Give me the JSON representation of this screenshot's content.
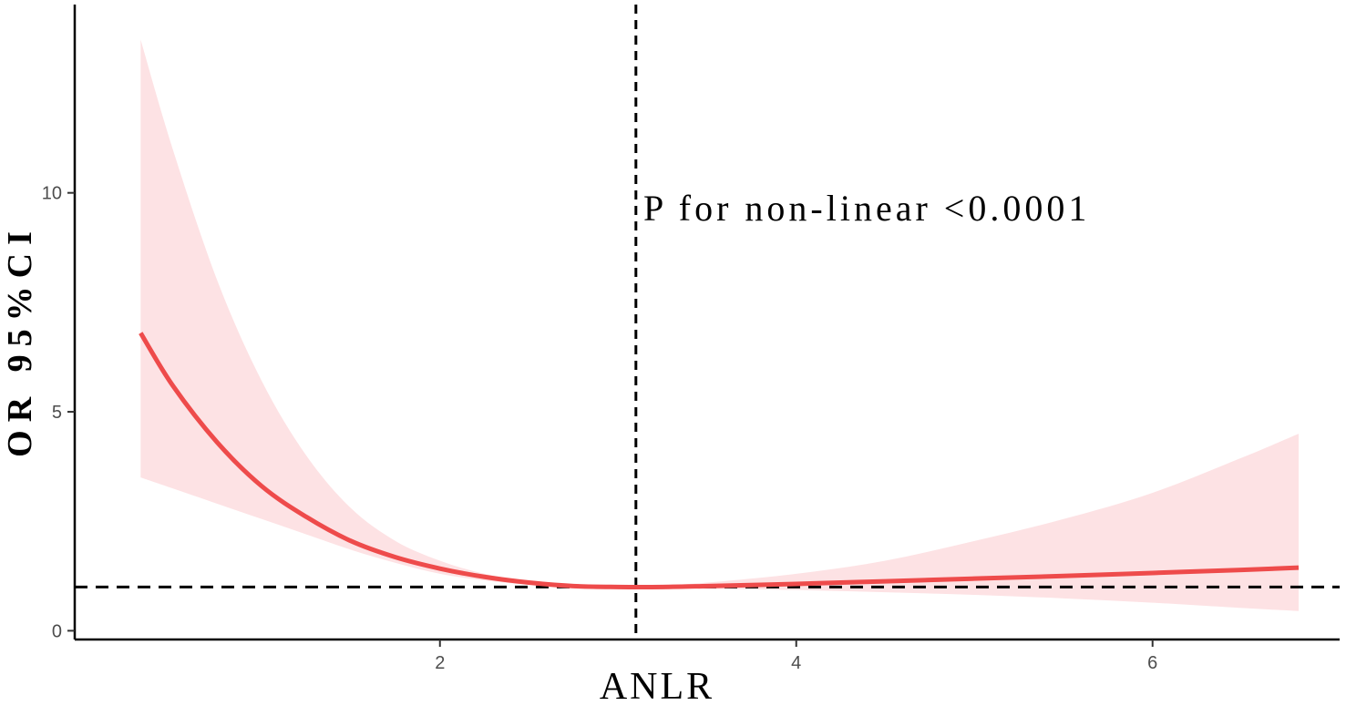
{
  "chart_data": {
    "type": "line",
    "xlabel": "ANLR",
    "ylabel": "OR 95%CI",
    "annotation": "P for non-linear <0.0001",
    "xlim": [
      -0.05,
      7.05
    ],
    "ylim": [
      -0.2,
      14.3
    ],
    "x_ticks": [
      2,
      4,
      6
    ],
    "y_ticks": [
      0,
      5,
      10
    ],
    "reference_hline_y": 1,
    "reference_vline_x": 3.1,
    "colors": {
      "line": "#ee4b4b",
      "band": "#fde2e4",
      "reference": "#000000"
    },
    "series": [
      {
        "x": [
          0.32,
          0.5,
          0.75,
          1.0,
          1.25,
          1.5,
          1.75,
          2.0,
          2.25,
          2.5,
          2.75,
          3.0,
          3.25,
          3.5,
          4.0,
          4.5,
          5.0,
          5.5,
          6.0,
          6.5,
          6.82
        ],
        "y": [
          6.8,
          5.6,
          4.3,
          3.3,
          2.6,
          2.05,
          1.68,
          1.42,
          1.23,
          1.1,
          1.02,
          1.0,
          1.0,
          1.02,
          1.07,
          1.13,
          1.19,
          1.25,
          1.32,
          1.39,
          1.44
        ],
        "lower": [
          3.5,
          3.25,
          2.9,
          2.55,
          2.2,
          1.85,
          1.55,
          1.3,
          1.15,
          1.05,
          1.0,
          0.98,
          0.97,
          0.96,
          0.93,
          0.88,
          0.82,
          0.74,
          0.64,
          0.52,
          0.45
        ],
        "upper": [
          13.5,
          11.0,
          8.0,
          5.7,
          4.0,
          2.8,
          2.05,
          1.6,
          1.3,
          1.14,
          1.05,
          1.02,
          1.04,
          1.1,
          1.3,
          1.6,
          2.05,
          2.55,
          3.15,
          3.95,
          4.5
        ]
      }
    ]
  }
}
